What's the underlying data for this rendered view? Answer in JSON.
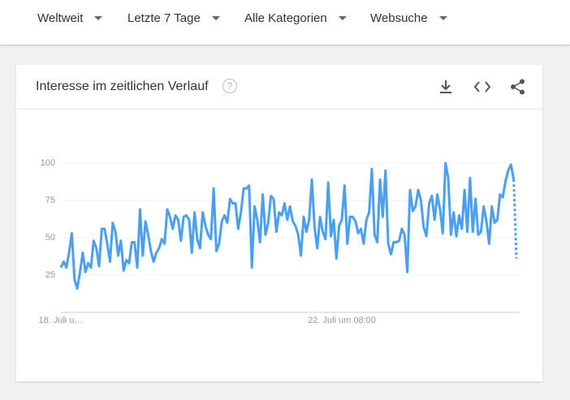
{
  "filters": [
    "Weltweit",
    "Letzte 7 Tage",
    "Alle Kategorien",
    "Websuche"
  ],
  "card": {
    "title": "Interesse im zeitlichen Verlauf"
  },
  "chart_data": {
    "type": "line",
    "color": "#4b9ff0",
    "last_segment": "dotted",
    "grid": true,
    "ylim": [
      0,
      100
    ],
    "yticks": [
      25,
      50,
      75,
      100
    ],
    "categories": [
      "18. Juli u…",
      null,
      null,
      null,
      null,
      null,
      null,
      null,
      null,
      null,
      null,
      null,
      null,
      null,
      null,
      null,
      null,
      null,
      null,
      null,
      null,
      null,
      null,
      null,
      null,
      null,
      null,
      null,
      null,
      null,
      null,
      null,
      null,
      null,
      null,
      null,
      null,
      null,
      null,
      null,
      null,
      null,
      null,
      null,
      null,
      null,
      null,
      null,
      null,
      null,
      null,
      null,
      null,
      null,
      null,
      null,
      null,
      null,
      null,
      null,
      null,
      null,
      null,
      null,
      null,
      null,
      null,
      null,
      null,
      null,
      null,
      null,
      null,
      null,
      null,
      null,
      null,
      null,
      null,
      null,
      null,
      null,
      null,
      null,
      null,
      null,
      null,
      null,
      null,
      null,
      null,
      null,
      null,
      null,
      null,
      null,
      null,
      null,
      null,
      null,
      null,
      null,
      null,
      "22. Juli um 08:00",
      null,
      null,
      null,
      null,
      null,
      null,
      null,
      null,
      null,
      null,
      null,
      null,
      null,
      null,
      null,
      null,
      null,
      null,
      null,
      null,
      null,
      null,
      null,
      null,
      null,
      null,
      null,
      null,
      null,
      null,
      null,
      null,
      null,
      null,
      null,
      null,
      null,
      null,
      null,
      null,
      null,
      null,
      null,
      null,
      null,
      null,
      null,
      null,
      null,
      null,
      null,
      null,
      null,
      null,
      null,
      null,
      null,
      null,
      null,
      null,
      null,
      null,
      null,
      null
    ],
    "values": [
      30,
      34,
      30,
      40,
      53,
      22,
      16,
      27,
      40,
      27,
      33,
      30,
      48,
      43,
      31,
      56,
      56,
      46,
      34,
      60,
      54,
      38,
      48,
      28,
      35,
      33,
      47,
      47,
      30,
      69,
      38,
      61,
      52,
      41,
      34,
      40,
      43,
      49,
      46,
      69,
      64,
      56,
      65,
      62,
      48,
      64,
      65,
      62,
      40,
      67,
      49,
      43,
      67,
      58,
      52,
      49,
      83,
      41,
      46,
      61,
      65,
      60,
      76,
      73,
      73,
      56,
      67,
      83,
      83,
      85,
      30,
      71,
      62,
      47,
      79,
      52,
      60,
      78,
      76,
      54,
      67,
      65,
      73,
      62,
      71,
      61,
      58,
      52,
      38,
      64,
      54,
      62,
      89,
      57,
      43,
      64,
      54,
      49,
      87,
      51,
      62,
      36,
      58,
      62,
      85,
      46,
      64,
      64,
      61,
      53,
      56,
      46,
      62,
      67,
      96,
      52,
      47,
      89,
      64,
      95,
      46,
      39,
      47,
      47,
      48,
      56,
      52,
      27,
      82,
      68,
      71,
      82,
      75,
      57,
      51,
      73,
      78,
      62,
      79,
      69,
      53,
      100,
      90,
      52,
      67,
      51,
      65,
      56,
      82,
      54,
      90,
      54,
      76,
      52,
      54,
      71,
      61,
      46,
      71,
      60,
      62,
      79,
      77,
      88,
      95,
      99,
      89,
      36
    ]
  }
}
